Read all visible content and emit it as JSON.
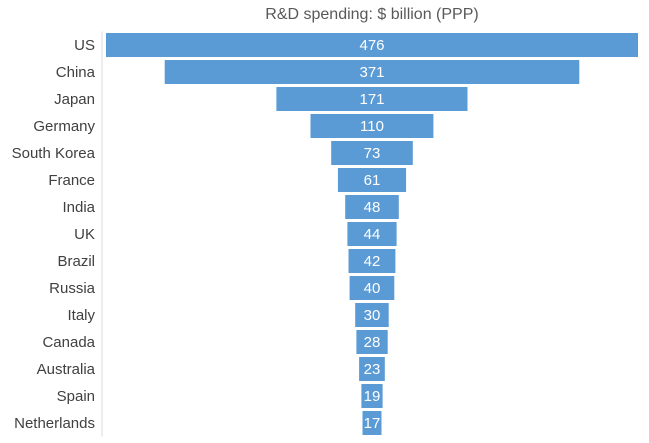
{
  "chart_data": {
    "type": "bar",
    "title": "R&D spending: $ billion (PPP)",
    "categories": [
      "US",
      "China",
      "Japan",
      "Germany",
      "South Korea",
      "France",
      "India",
      "UK",
      "Brazil",
      "Russia",
      "Italy",
      "Canada",
      "Australia",
      "Spain",
      "Netherlands"
    ],
    "values": [
      476,
      371,
      171,
      110,
      73,
      61,
      48,
      44,
      42,
      40,
      30,
      28,
      23,
      19,
      17
    ],
    "xlabel": "",
    "ylabel": "",
    "grid": false,
    "bar_color": "#5b9bd5"
  }
}
